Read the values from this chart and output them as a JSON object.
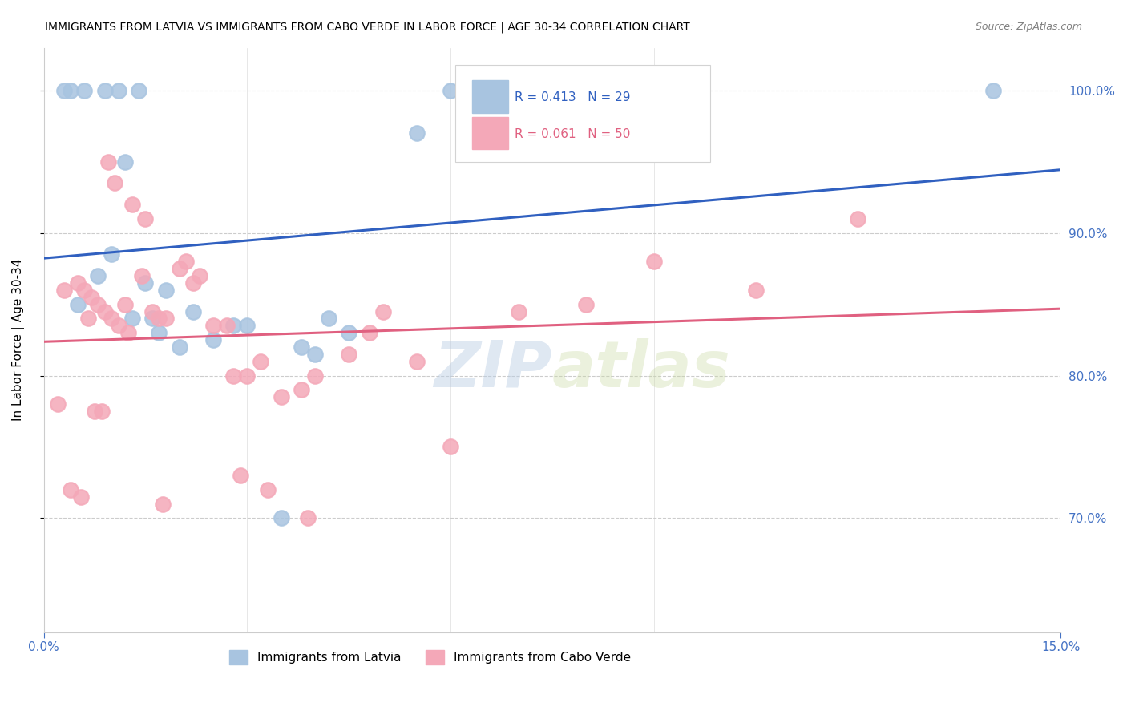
{
  "title": "IMMIGRANTS FROM LATVIA VS IMMIGRANTS FROM CABO VERDE IN LABOR FORCE | AGE 30-34 CORRELATION CHART",
  "source": "Source: ZipAtlas.com",
  "ylabel": "In Labor Force | Age 30-34",
  "yticks": [
    70.0,
    80.0,
    90.0,
    100.0
  ],
  "xlim": [
    0.0,
    15.0
  ],
  "ylim": [
    62.0,
    103.0
  ],
  "legend_label1": "Immigrants from Latvia",
  "legend_label2": "Immigrants from Cabo Verde",
  "R_latvia": 0.413,
  "N_latvia": 29,
  "R_caboverde": 0.061,
  "N_caboverde": 50,
  "latvia_color": "#a8c4e0",
  "caboverde_color": "#f4a8b8",
  "latvia_line_color": "#3060c0",
  "caboverde_line_color": "#e06080",
  "latvia_x": [
    0.5,
    0.8,
    1.0,
    1.2,
    1.3,
    1.5,
    1.6,
    1.7,
    1.8,
    2.0,
    2.2,
    2.5,
    2.8,
    3.0,
    3.5,
    3.8,
    4.0,
    4.2,
    4.5,
    5.5,
    6.0,
    7.5,
    0.3,
    0.4,
    0.6,
    0.9,
    1.1,
    1.4,
    14.0
  ],
  "latvia_y": [
    85.0,
    87.0,
    88.5,
    95.0,
    84.0,
    86.5,
    84.0,
    83.0,
    86.0,
    82.0,
    84.5,
    82.5,
    83.5,
    83.5,
    70.0,
    82.0,
    81.5,
    84.0,
    83.0,
    97.0,
    100.0,
    100.0,
    100.0,
    100.0,
    100.0,
    100.0,
    100.0,
    100.0,
    100.0
  ],
  "caboverde_x": [
    0.3,
    0.5,
    0.6,
    0.7,
    0.8,
    0.9,
    1.0,
    1.1,
    1.2,
    1.3,
    1.5,
    1.6,
    1.7,
    1.8,
    2.0,
    2.1,
    2.2,
    2.5,
    2.7,
    2.8,
    3.0,
    3.2,
    3.5,
    3.8,
    4.0,
    4.5,
    5.0,
    5.5,
    6.0,
    7.0,
    8.0,
    9.0,
    10.5,
    12.0,
    0.2,
    0.4,
    0.55,
    0.65,
    0.75,
    0.85,
    0.95,
    1.05,
    1.25,
    1.45,
    1.75,
    2.3,
    2.9,
    3.3,
    3.9,
    4.8
  ],
  "caboverde_y": [
    86.0,
    86.5,
    86.0,
    85.5,
    85.0,
    84.5,
    84.0,
    83.5,
    85.0,
    92.0,
    91.0,
    84.5,
    84.0,
    84.0,
    87.5,
    88.0,
    86.5,
    83.5,
    83.5,
    80.0,
    80.0,
    81.0,
    78.5,
    79.0,
    80.0,
    81.5,
    84.5,
    81.0,
    75.0,
    84.5,
    85.0,
    88.0,
    86.0,
    91.0,
    78.0,
    72.0,
    71.5,
    84.0,
    77.5,
    77.5,
    95.0,
    93.5,
    83.0,
    87.0,
    71.0,
    87.0,
    73.0,
    72.0,
    70.0,
    83.0
  ],
  "watermark_zip": "ZIP",
  "watermark_atlas": "atlas",
  "background_color": "#ffffff",
  "grid_color": "#cccccc",
  "axis_label_color": "#4472c4"
}
